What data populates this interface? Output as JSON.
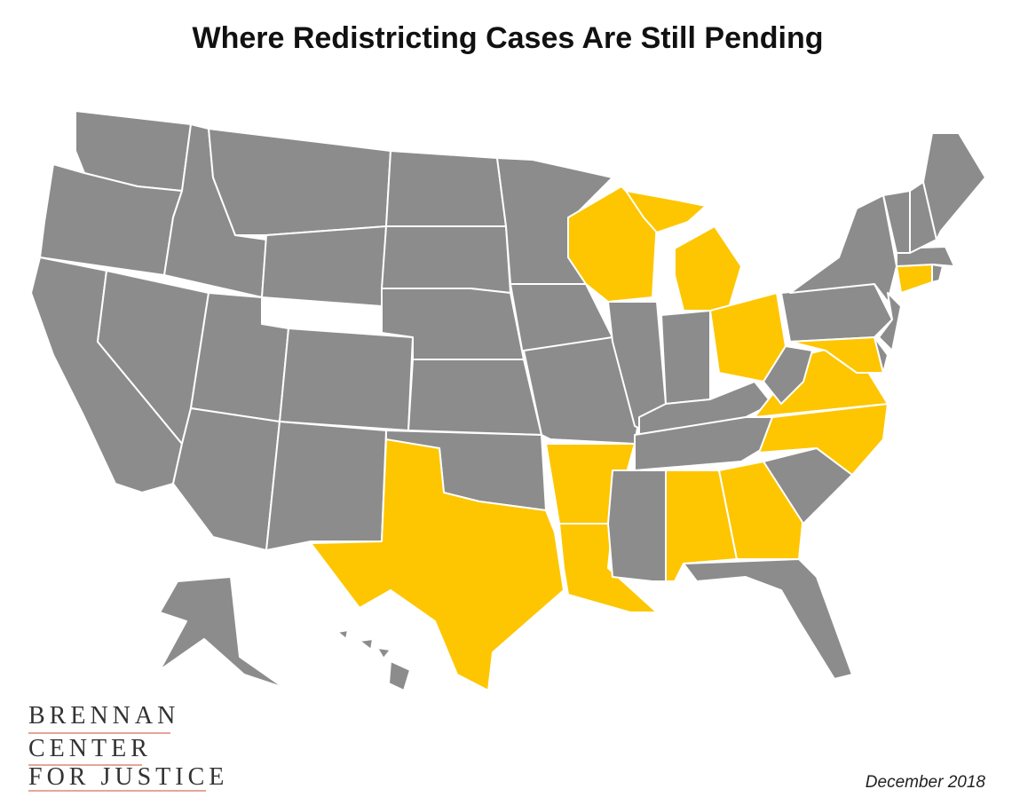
{
  "header": {
    "title": "Where Redistricting Cases Are Still Pending"
  },
  "map": {
    "base_color": "#8c8c8c",
    "highlight_color": "#fdc600",
    "border_color": "#ffffff"
  },
  "logo": {
    "lines": [
      "BRENNAN",
      "CENTER",
      "FOR JUSTICE"
    ],
    "rule_color": "#e0857a"
  },
  "footer": {
    "date": "December 2018"
  }
}
